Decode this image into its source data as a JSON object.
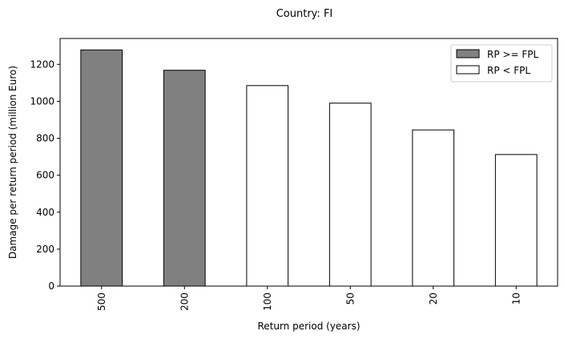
{
  "chart_data": {
    "type": "bar",
    "title": "Country: FI",
    "xlabel": "Return period (years)",
    "ylabel": "Damage per return period (million Euro)",
    "categories": [
      "500",
      "200",
      "100",
      "50",
      "20",
      "10"
    ],
    "values": [
      1278,
      1168,
      1085,
      990,
      845,
      712
    ],
    "ylim": [
      0,
      1340
    ],
    "yticks": [
      0,
      200,
      400,
      600,
      800,
      1000,
      1200
    ],
    "grid": false,
    "legend_position": "top-right",
    "series": [
      {
        "name": "RP >= FPL",
        "color": "#808080",
        "categories": [
          "500",
          "200"
        ]
      },
      {
        "name": "RP < FPL",
        "color": "#ffffff",
        "categories": [
          "100",
          "50",
          "20",
          "10"
        ]
      }
    ]
  }
}
